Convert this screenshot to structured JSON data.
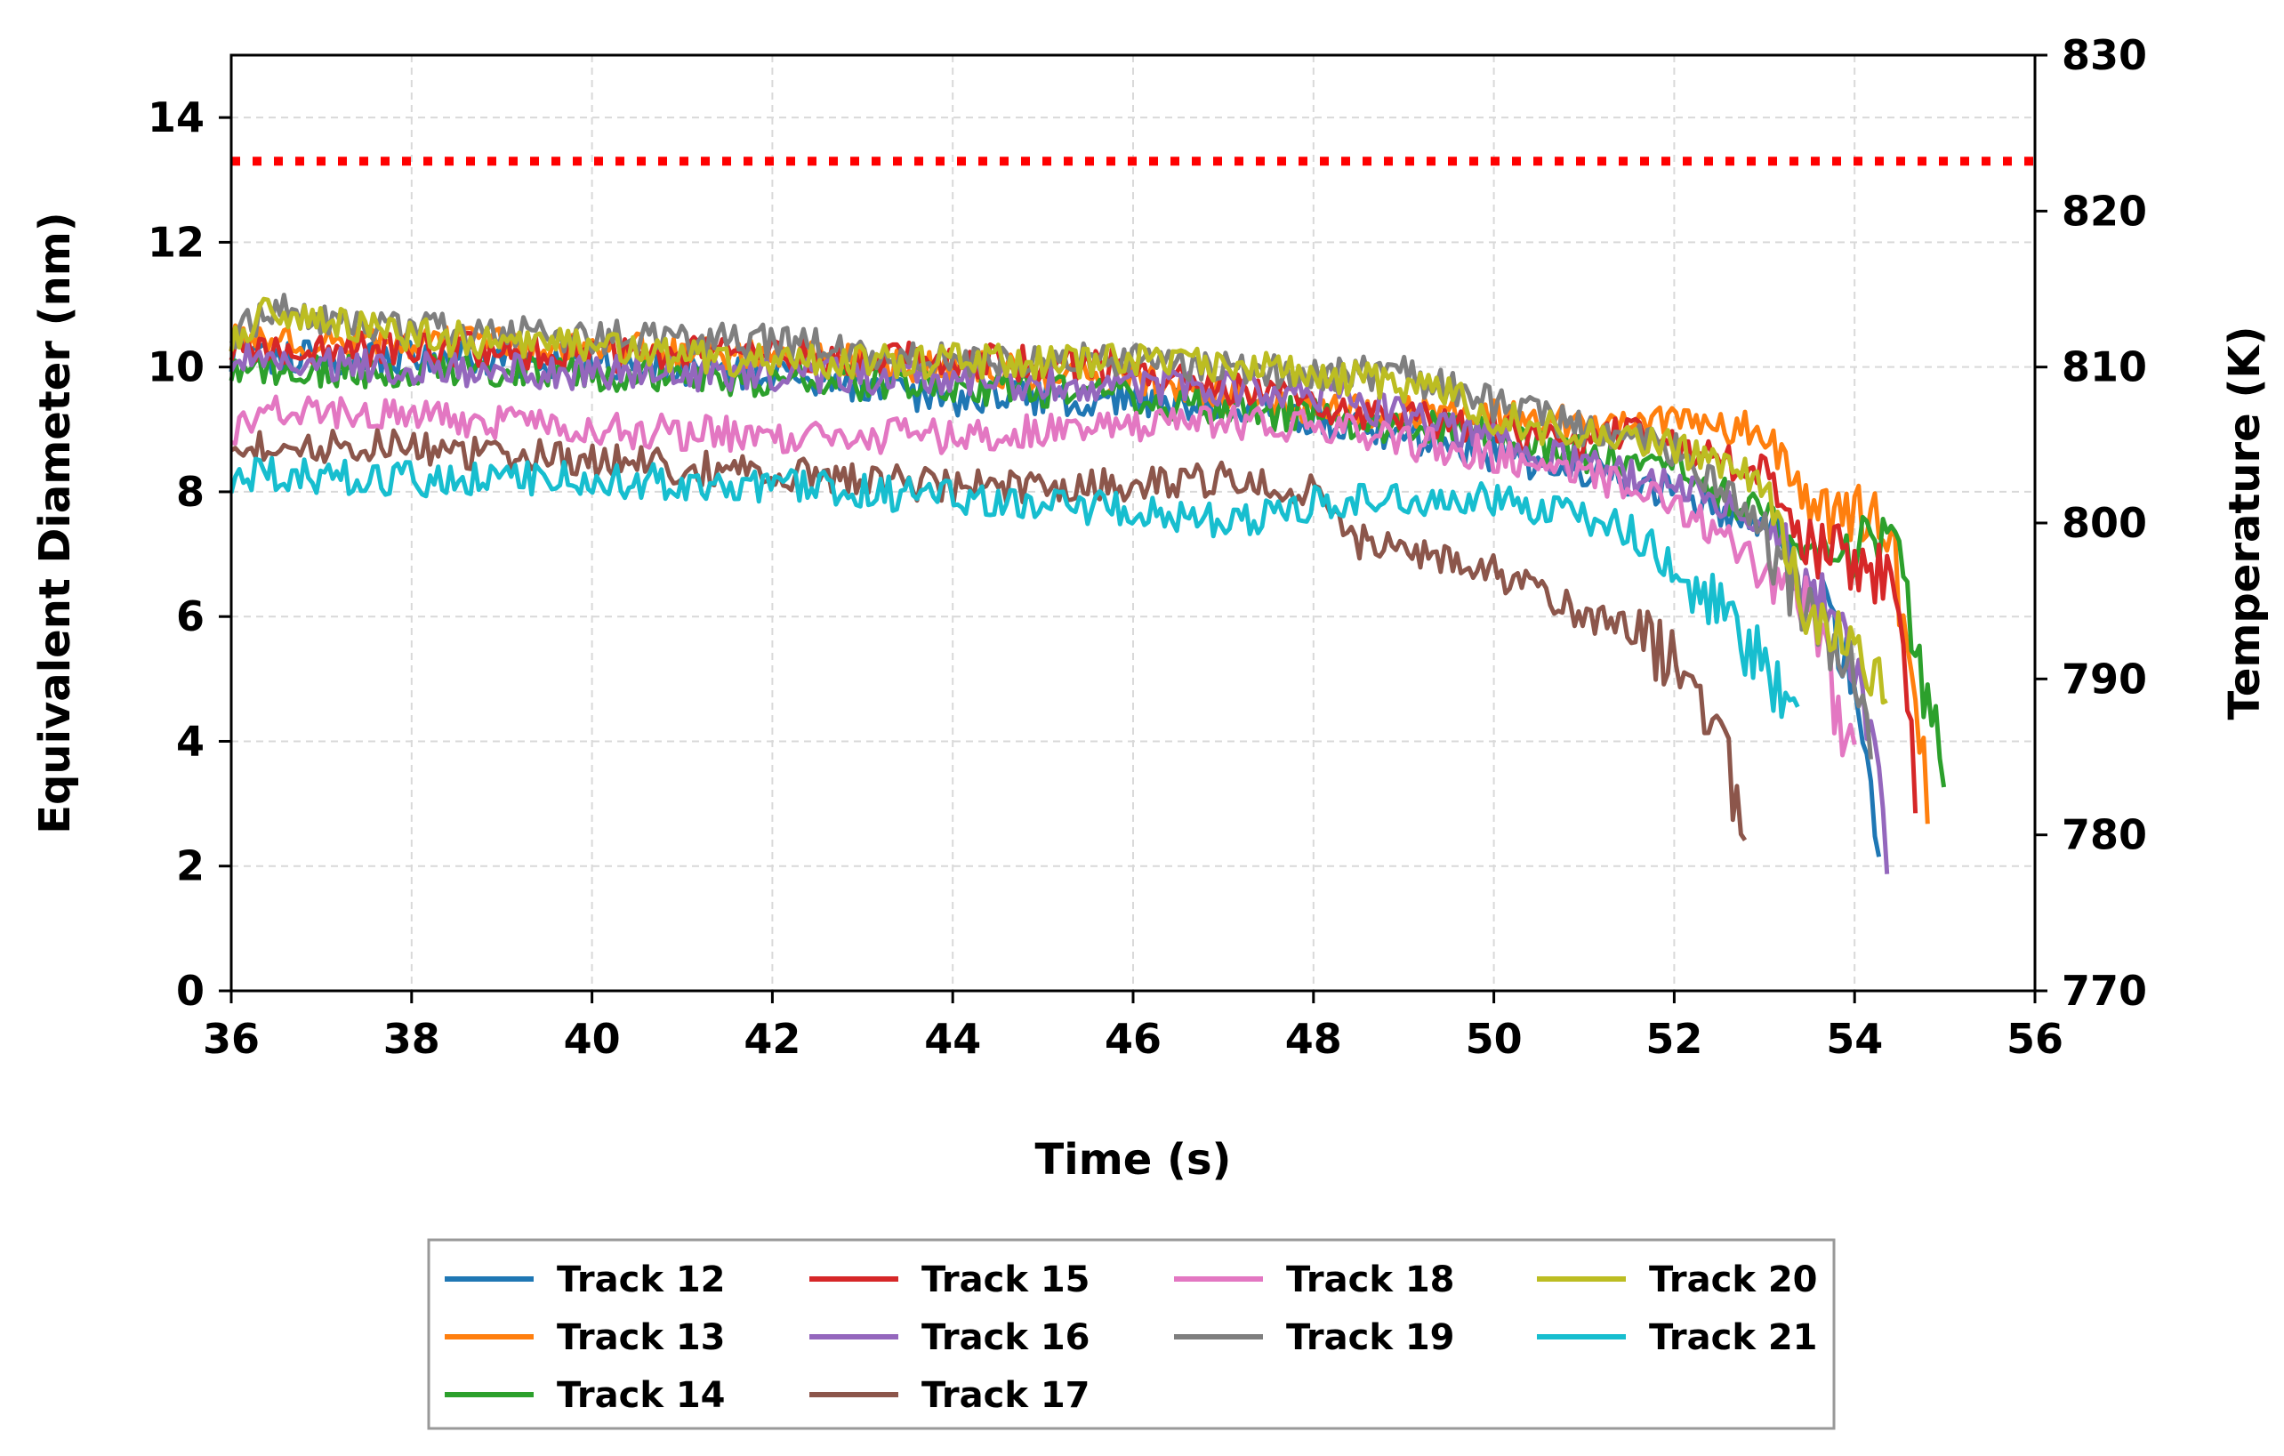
{
  "chart_data": {
    "type": "line",
    "title": "",
    "xlabel": "Time (s)",
    "ylabel": "Equivalent Diameter (nm)",
    "y2label": "Temperature (K)",
    "xlim": [
      36,
      56
    ],
    "ylim": [
      0,
      15
    ],
    "y2lim": [
      770,
      830
    ],
    "xticks": [
      36,
      38,
      40,
      42,
      44,
      46,
      48,
      50,
      52,
      54,
      56
    ],
    "yticks": [
      0,
      2,
      4,
      6,
      8,
      10,
      12,
      14
    ],
    "y2ticks": [
      770,
      780,
      790,
      800,
      810,
      820,
      830
    ],
    "grid": true,
    "legend_position": "bottom-center",
    "temperature_line": {
      "value": 823.2,
      "color": "#ff0000",
      "style": "dotted"
    },
    "series": [
      {
        "name": "Track 12",
        "color": "#1f77b4",
        "x": [
          36.0,
          40.0,
          42.0,
          44.0,
          46.0,
          48.0,
          50.0,
          51.0,
          52.0,
          53.0,
          53.5,
          54.0,
          54.3
        ],
        "y": [
          10.2,
          10.1,
          9.9,
          9.5,
          9.5,
          9.2,
          8.6,
          8.3,
          8.0,
          7.4,
          6.5,
          5.0,
          1.8
        ]
      },
      {
        "name": "Track 13",
        "color": "#ff7f0e",
        "x": [
          36.0,
          38.0,
          40.0,
          42.0,
          44.0,
          46.0,
          48.0,
          50.0,
          51.0,
          52.0,
          53.0,
          53.5,
          54.0,
          54.4,
          54.7,
          54.85
        ],
        "y": [
          10.5,
          10.4,
          10.3,
          10.2,
          10.0,
          9.8,
          9.3,
          9.2,
          9.1,
          9.1,
          9.0,
          7.8,
          7.6,
          7.4,
          4.2,
          2.6
        ]
      },
      {
        "name": "Track 14",
        "color": "#2ca02c",
        "x": [
          36.0,
          38.0,
          40.0,
          42.0,
          44.0,
          46.0,
          48.0,
          50.0,
          51.0,
          52.0,
          53.0,
          53.5,
          54.0,
          54.4,
          54.7,
          55.0
        ],
        "y": [
          10.0,
          9.9,
          9.9,
          9.8,
          9.7,
          9.5,
          9.2,
          8.9,
          8.6,
          8.4,
          7.6,
          7.1,
          7.0,
          7.4,
          5.2,
          3.5
        ]
      },
      {
        "name": "Track 15",
        "color": "#d62728",
        "x": [
          36.0,
          38.0,
          40.0,
          42.0,
          44.0,
          46.0,
          48.0,
          50.0,
          51.0,
          51.5,
          52.0,
          53.0,
          53.5,
          54.0,
          54.4,
          54.6,
          54.7
        ],
        "y": [
          10.3,
          10.3,
          10.2,
          10.2,
          10.1,
          10.0,
          9.4,
          9.0,
          8.7,
          9.0,
          8.7,
          8.3,
          7.0,
          6.9,
          6.6,
          4.5,
          2.6
        ]
      },
      {
        "name": "Track 16",
        "color": "#9467bd",
        "x": [
          36.0,
          38.0,
          40.0,
          42.0,
          44.0,
          46.0,
          48.0,
          50.0,
          51.0,
          52.0,
          53.0,
          53.5,
          54.0,
          54.2,
          54.4
        ],
        "y": [
          10.1,
          10.0,
          9.9,
          9.9,
          9.8,
          9.7,
          9.6,
          8.8,
          8.4,
          8.1,
          7.5,
          6.5,
          5.4,
          4.2,
          1.8
        ]
      },
      {
        "name": "Track 17",
        "color": "#8c564b",
        "x": [
          36.0,
          38.0,
          40.0,
          42.0,
          44.0,
          46.0,
          47.0,
          48.0,
          48.5,
          49.0,
          50.0,
          51.0,
          51.5,
          52.0,
          52.3,
          52.6,
          52.8
        ],
        "y": [
          8.8,
          8.7,
          8.5,
          8.3,
          8.1,
          8.1,
          8.2,
          8.0,
          7.2,
          7.0,
          6.7,
          6.0,
          5.8,
          5.2,
          4.5,
          3.6,
          2.3
        ]
      },
      {
        "name": "Track 18",
        "color": "#e377c2",
        "x": [
          36.0,
          36.5,
          38.0,
          40.0,
          42.0,
          44.0,
          46.0,
          48.0,
          49.0,
          50.0,
          51.0,
          52.0,
          52.5,
          53.0,
          53.5,
          53.8,
          54.0
        ],
        "y": [
          8.9,
          9.3,
          9.2,
          9.0,
          8.9,
          8.9,
          9.1,
          9.1,
          8.8,
          8.6,
          8.3,
          7.8,
          7.3,
          6.9,
          6.2,
          4.5,
          3.5
        ]
      },
      {
        "name": "Track 19",
        "color": "#7f7f7f",
        "x": [
          36.0,
          36.5,
          37.0,
          38.0,
          40.0,
          42.0,
          44.0,
          46.0,
          48.0,
          49.0,
          50.0,
          51.0,
          52.0,
          52.5,
          53.0,
          53.5,
          54.0,
          54.2
        ],
        "y": [
          10.5,
          11.0,
          10.8,
          10.6,
          10.5,
          10.4,
          10.1,
          10.1,
          9.9,
          9.9,
          9.4,
          9.0,
          8.7,
          8.1,
          7.3,
          6.0,
          5.0,
          3.8
        ]
      },
      {
        "name": "Track 20",
        "color": "#bcbd22",
        "x": [
          36.0,
          36.4,
          38.0,
          40.0,
          42.0,
          44.0,
          46.0,
          48.0,
          49.0,
          49.5,
          50.0,
          51.0,
          52.0,
          52.5,
          53.0,
          53.3,
          53.6,
          54.0,
          54.4
        ],
        "y": [
          10.3,
          10.9,
          10.5,
          10.3,
          10.1,
          10.1,
          10.1,
          9.9,
          9.7,
          9.6,
          9.2,
          8.9,
          8.7,
          8.4,
          8.2,
          6.8,
          5.8,
          5.3,
          4.7
        ]
      },
      {
        "name": "Track 21",
        "color": "#17becf",
        "x": [
          36.0,
          36.3,
          38.0,
          40.0,
          42.0,
          44.0,
          46.0,
          47.0,
          48.0,
          49.0,
          50.0,
          51.0,
          51.5,
          52.0,
          52.5,
          53.0,
          53.4
        ],
        "y": [
          8.0,
          8.3,
          8.2,
          8.2,
          8.1,
          7.9,
          7.7,
          7.5,
          7.8,
          7.9,
          7.9,
          7.6,
          7.4,
          6.8,
          6.0,
          5.2,
          4.2
        ]
      }
    ]
  }
}
